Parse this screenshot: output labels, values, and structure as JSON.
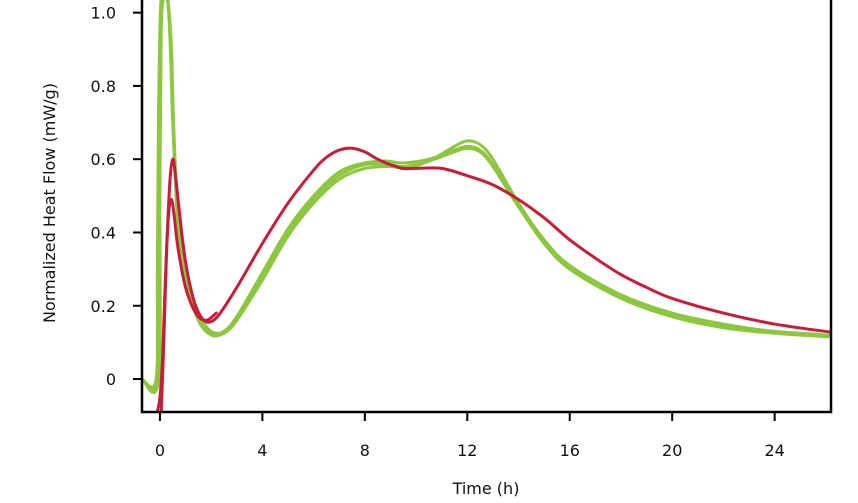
{
  "chart_data": {
    "type": "line",
    "title": "",
    "xlabel": "Time (h)",
    "ylabel": "Normalized Heat Flow (mW/g)",
    "xlim": [
      -0.7,
      26.2
    ],
    "ylim": [
      -0.09,
      1.04
    ],
    "grid": false,
    "legend": "none",
    "x_ticks": [
      0,
      4,
      8,
      12,
      16,
      20,
      24
    ],
    "x_tick_labels": [
      "0",
      "4",
      "8",
      "12",
      "16",
      "20",
      "24"
    ],
    "y_ticks": [
      0,
      0.2,
      0.4,
      0.6,
      0.8,
      1.0
    ],
    "y_tick_labels": [
      "0",
      "0.2",
      "0.4",
      "0.6",
      "0.8",
      "1.0"
    ],
    "series": [
      {
        "color": "#8dc63f",
        "points": [
          [
            -0.7,
            0
          ],
          [
            -0.1,
            0
          ],
          [
            -0.05,
            0.4
          ],
          [
            0.0,
            0.8
          ],
          [
            0.1,
            1.04
          ],
          [
            0.35,
            1.0
          ],
          [
            0.5,
            0.7
          ],
          [
            0.7,
            0.42
          ],
          [
            1.0,
            0.27
          ],
          [
            1.5,
            0.16
          ],
          [
            2.0,
            0.12
          ],
          [
            2.5,
            0.125
          ],
          [
            3.0,
            0.16
          ],
          [
            4.0,
            0.27
          ],
          [
            5.0,
            0.39
          ],
          [
            6.0,
            0.48
          ],
          [
            7.0,
            0.545
          ],
          [
            8.0,
            0.575
          ],
          [
            9.0,
            0.58
          ],
          [
            9.6,
            0.575
          ],
          [
            10.5,
            0.595
          ],
          [
            11.5,
            0.635
          ],
          [
            12.0,
            0.65
          ],
          [
            12.5,
            0.64
          ],
          [
            13.0,
            0.6
          ],
          [
            14.0,
            0.48
          ],
          [
            15.0,
            0.38
          ],
          [
            16.0,
            0.31
          ],
          [
            18.0,
            0.23
          ],
          [
            20.0,
            0.18
          ],
          [
            22.0,
            0.15
          ],
          [
            24.0,
            0.13
          ],
          [
            26.2,
            0.12
          ]
        ]
      },
      {
        "color": "#8dc63f",
        "points": [
          [
            -0.7,
            0
          ],
          [
            -0.15,
            0
          ],
          [
            -0.1,
            0.3
          ],
          [
            -0.05,
            0.75
          ],
          [
            0.05,
            1.04
          ],
          [
            0.3,
            1.04
          ],
          [
            0.5,
            0.75
          ],
          [
            0.7,
            0.45
          ],
          [
            1.0,
            0.28
          ],
          [
            1.5,
            0.17
          ],
          [
            2.0,
            0.125
          ],
          [
            2.5,
            0.13
          ],
          [
            3.0,
            0.17
          ],
          [
            4.0,
            0.28
          ],
          [
            5.0,
            0.4
          ],
          [
            6.0,
            0.49
          ],
          [
            7.0,
            0.555
          ],
          [
            8.0,
            0.585
          ],
          [
            9.0,
            0.585
          ],
          [
            9.5,
            0.58
          ],
          [
            10.5,
            0.595
          ],
          [
            11.5,
            0.62
          ],
          [
            12.0,
            0.63
          ],
          [
            12.5,
            0.62
          ],
          [
            13.0,
            0.58
          ],
          [
            14.0,
            0.47
          ],
          [
            15.0,
            0.37
          ],
          [
            16.0,
            0.3
          ],
          [
            18.0,
            0.22
          ],
          [
            20.0,
            0.17
          ],
          [
            22.0,
            0.14
          ],
          [
            24.0,
            0.125
          ],
          [
            26.2,
            0.115
          ]
        ]
      },
      {
        "color": "#8dc63f",
        "points": [
          [
            -0.7,
            0
          ],
          [
            -0.05,
            0
          ],
          [
            0.0,
            0.5
          ],
          [
            0.05,
            0.95
          ],
          [
            0.15,
            1.04
          ],
          [
            0.3,
            1.04
          ],
          [
            0.45,
            0.9
          ],
          [
            0.6,
            0.55
          ],
          [
            0.9,
            0.3
          ],
          [
            1.5,
            0.18
          ],
          [
            2.0,
            0.13
          ],
          [
            2.5,
            0.13
          ],
          [
            3.0,
            0.17
          ],
          [
            4.0,
            0.29
          ],
          [
            5.0,
            0.41
          ],
          [
            6.0,
            0.5
          ],
          [
            7.0,
            0.565
          ],
          [
            8.0,
            0.59
          ],
          [
            8.8,
            0.595
          ],
          [
            9.5,
            0.59
          ],
          [
            10.5,
            0.6
          ],
          [
            11.5,
            0.625
          ],
          [
            12.0,
            0.635
          ],
          [
            12.5,
            0.625
          ],
          [
            13.0,
            0.585
          ],
          [
            14.0,
            0.475
          ],
          [
            15.0,
            0.375
          ],
          [
            16.0,
            0.305
          ],
          [
            18.0,
            0.225
          ],
          [
            20.0,
            0.175
          ],
          [
            22.0,
            0.145
          ],
          [
            24.0,
            0.13
          ],
          [
            26.2,
            0.118
          ]
        ]
      },
      {
        "color": "#c41e3a",
        "points": [
          [
            -0.1,
            -0.09
          ],
          [
            0.0,
            -0.05
          ],
          [
            0.1,
            0.05
          ],
          [
            0.2,
            0.25
          ],
          [
            0.3,
            0.42
          ],
          [
            0.4,
            0.55
          ],
          [
            0.5,
            0.6
          ],
          [
            0.6,
            0.56
          ],
          [
            0.8,
            0.43
          ],
          [
            1.0,
            0.32
          ],
          [
            1.3,
            0.22
          ],
          [
            1.6,
            0.17
          ],
          [
            1.9,
            0.155
          ],
          [
            2.3,
            0.175
          ],
          [
            3.0,
            0.25
          ],
          [
            4.0,
            0.37
          ],
          [
            5.0,
            0.48
          ],
          [
            6.0,
            0.57
          ],
          [
            6.5,
            0.605
          ],
          [
            7.0,
            0.625
          ],
          [
            7.5,
            0.63
          ],
          [
            8.0,
            0.62
          ],
          [
            8.5,
            0.6
          ],
          [
            9.0,
            0.585
          ],
          [
            9.5,
            0.575
          ],
          [
            10.0,
            0.575
          ],
          [
            11.0,
            0.575
          ],
          [
            12.0,
            0.555
          ],
          [
            13.0,
            0.53
          ],
          [
            14.0,
            0.49
          ],
          [
            15.0,
            0.44
          ],
          [
            16.0,
            0.38
          ],
          [
            17.0,
            0.33
          ],
          [
            18.0,
            0.285
          ],
          [
            19.0,
            0.25
          ],
          [
            20.0,
            0.22
          ],
          [
            22.0,
            0.18
          ],
          [
            24.0,
            0.15
          ],
          [
            26.2,
            0.128
          ]
        ]
      },
      {
        "color": "#c41e3a",
        "points": [
          [
            0.05,
            -0.09
          ],
          [
            0.15,
            0.1
          ],
          [
            0.25,
            0.33
          ],
          [
            0.35,
            0.46
          ],
          [
            0.45,
            0.49
          ],
          [
            0.55,
            0.45
          ],
          [
            0.7,
            0.36
          ],
          [
            1.0,
            0.25
          ],
          [
            1.4,
            0.18
          ],
          [
            1.8,
            0.16
          ],
          [
            2.2,
            0.18
          ]
        ]
      }
    ]
  }
}
